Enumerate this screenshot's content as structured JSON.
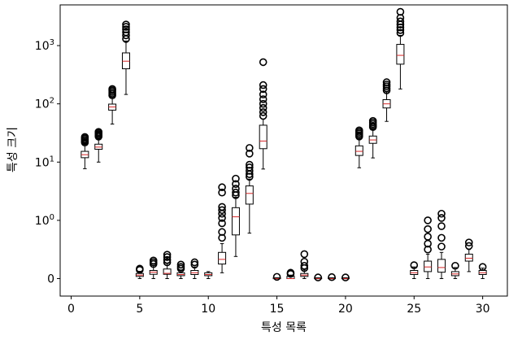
{
  "chart_data": {
    "type": "boxplot",
    "xlabel": "특성 목록",
    "ylabel": "특성 크기",
    "yscale": "symlog",
    "xlim": [
      -0.8,
      31.8
    ],
    "ylim": [
      -0.3,
      5000
    ],
    "xticks": [
      0,
      5,
      10,
      15,
      20,
      25,
      30
    ],
    "xtick_labels": [
      "0",
      "5",
      "10",
      "15",
      "20",
      "25",
      "30"
    ],
    "yticks": [
      0,
      1,
      10,
      100,
      1000
    ],
    "ytick_labels": [
      "0",
      "10^0",
      "10^1",
      "10^2",
      "10^3"
    ],
    "grid": false,
    "boxes": [
      {
        "x": 1,
        "whislo": 7.7,
        "q1": 11.9,
        "med": 13.4,
        "q3": 15.3,
        "whishi": 20.6,
        "fliers": [
          21.7,
          22.9,
          24.2,
          25.6,
          27.0
        ]
      },
      {
        "x": 2,
        "whislo": 10.0,
        "q1": 16.6,
        "med": 18.1,
        "q3": 20.3,
        "whishi": 26.4,
        "fliers": [
          27.4,
          28.6,
          30.0,
          31.5,
          33.0
        ]
      },
      {
        "x": 3,
        "whislo": 45.0,
        "q1": 78.0,
        "med": 88.5,
        "q3": 99.0,
        "whishi": 130.0,
        "fliers": [
          140,
          150,
          160,
          170,
          180
        ]
      },
      {
        "x": 4,
        "whislo": 145.0,
        "q1": 400.0,
        "med": 540.0,
        "q3": 750.0,
        "whishi": 1200.0,
        "fliers": [
          1300,
          1500,
          1700,
          1900,
          2100,
          2300
        ]
      },
      {
        "x": 5,
        "whislo": 0.0,
        "q1": 0.037,
        "med": 0.06,
        "q3": 0.088,
        "whishi": 0.125,
        "fliers": [
          0.15,
          0.17
        ]
      },
      {
        "x": 6,
        "whislo": 0.0,
        "q1": 0.074,
        "med": 0.11,
        "q3": 0.14,
        "whishi": 0.23,
        "fliers": [
          0.25,
          0.28,
          0.31
        ]
      },
      {
        "x": 7,
        "whislo": 0.0,
        "q1": 0.074,
        "med": 0.09,
        "q3": 0.165,
        "whishi": 0.26,
        "fliers": [
          0.28,
          0.32,
          0.37,
          0.41
        ]
      },
      {
        "x": 8,
        "whislo": 0.0,
        "q1": 0.05,
        "med": 0.07,
        "q3": 0.1,
        "whishi": 0.14,
        "fliers": [
          0.17,
          0.2,
          0.24
        ]
      },
      {
        "x": 9,
        "whislo": 0.0,
        "q1": 0.07,
        "med": 0.1,
        "q3": 0.14,
        "whishi": 0.2,
        "fliers": [
          0.24,
          0.28
        ]
      },
      {
        "x": 10,
        "whislo": 0.0,
        "q1": 0.05,
        "med": 0.07,
        "q3": 0.1,
        "whishi": 0.12,
        "fliers": []
      },
      {
        "x": 11,
        "whislo": 0.1,
        "q1": 0.25,
        "med": 0.33,
        "q3": 0.45,
        "whishi": 0.6,
        "fliers": [
          0.7,
          0.8,
          0.95,
          1.1,
          1.3,
          1.5,
          1.7,
          3.0,
          3.7
        ]
      },
      {
        "x": 12,
        "whislo": 0.38,
        "q1": 0.75,
        "med": 1.15,
        "q3": 1.65,
        "whishi": 2.5,
        "fliers": [
          2.7,
          3.0,
          3.5,
          4.2,
          5.2
        ]
      },
      {
        "x": 13,
        "whislo": 0.78,
        "q1": 1.9,
        "med": 2.9,
        "q3": 3.9,
        "whishi": 5.1,
        "fliers": [
          5.6,
          6.2,
          7.1,
          8.1,
          9.0,
          14.0,
          17.5
        ]
      },
      {
        "x": 14,
        "whislo": 7.6,
        "q1": 17.0,
        "med": 23.0,
        "q3": 43.0,
        "whishi": 55.0,
        "fliers": [
          62,
          72,
          85,
          100,
          120,
          145,
          180,
          210,
          520
        ]
      },
      {
        "x": 15,
        "whislo": 0.0,
        "q1": 0.0,
        "med": 0.0,
        "q3": 0.012,
        "whishi": 0.012,
        "fliers": [
          0.03
        ]
      },
      {
        "x": 16,
        "whislo": 0.0,
        "q1": 0.0,
        "med": 0.0,
        "q3": 0.04,
        "whishi": 0.06,
        "fliers": [
          0.08,
          0.1
        ]
      },
      {
        "x": 17,
        "whislo": 0.0,
        "q1": 0.037,
        "med": 0.06,
        "q3": 0.088,
        "whishi": 0.15,
        "fliers": [
          0.18,
          0.22,
          0.29,
          0.42
        ]
      },
      {
        "x": 18,
        "whislo": 0.0,
        "q1": 0.0,
        "med": 0.0,
        "q3": 0.012,
        "whishi": 0.012,
        "fliers": [
          0.02
        ]
      },
      {
        "x": 19,
        "whislo": 0.0,
        "q1": 0.0,
        "med": 0.0,
        "q3": 0.012,
        "whishi": 0.012,
        "fliers": [
          0.025
        ]
      },
      {
        "x": 20,
        "whislo": 0.0,
        "q1": 0.0,
        "med": 0.0,
        "q3": 0.012,
        "whishi": 0.012,
        "fliers": [
          0.02
        ]
      },
      {
        "x": 21,
        "whislo": 8.0,
        "q1": 13.0,
        "med": 15.3,
        "q3": 19.0,
        "whishi": 26.0,
        "fliers": [
          27.5,
          29.0,
          31.0,
          33.0,
          35.0
        ]
      },
      {
        "x": 22,
        "whislo": 11.8,
        "q1": 21.0,
        "med": 24.0,
        "q3": 28.0,
        "whishi": 38.0,
        "fliers": [
          40,
          42,
          45,
          48,
          51
        ]
      },
      {
        "x": 23,
        "whislo": 50.0,
        "q1": 85.0,
        "med": 100.0,
        "q3": 118.0,
        "whishi": 160.0,
        "fliers": [
          170,
          185,
          200,
          215,
          235
        ]
      },
      {
        "x": 24,
        "whislo": 180.0,
        "q1": 480.0,
        "med": 680.0,
        "q3": 1050.0,
        "whishi": 1500.0,
        "fliers": [
          1650,
          1850,
          2050,
          2300,
          2600,
          3000,
          3800
        ]
      },
      {
        "x": 25,
        "whislo": 0.0,
        "q1": 0.07,
        "med": 0.1,
        "q3": 0.14,
        "whishi": 0.2,
        "fliers": [
          0.23
        ]
      },
      {
        "x": 26,
        "whislo": 0.0,
        "q1": 0.12,
        "med": 0.2,
        "q3": 0.3,
        "whishi": 0.42,
        "fliers": [
          0.5,
          0.6,
          0.72,
          0.85,
          1.0
        ]
      },
      {
        "x": 27,
        "whislo": 0.0,
        "q1": 0.11,
        "med": 0.19,
        "q3": 0.33,
        "whishi": 0.45,
        "fliers": [
          0.55,
          0.7,
          0.9,
          1.1,
          1.3
        ]
      },
      {
        "x": 28,
        "whislo": 0.0,
        "q1": 0.05,
        "med": 0.08,
        "q3": 0.12,
        "whishi": 0.19,
        "fliers": [
          0.22
        ]
      },
      {
        "x": 29,
        "whislo": 0.12,
        "q1": 0.3,
        "med": 0.35,
        "q3": 0.42,
        "whishi": 0.5,
        "fliers": [
          0.56,
          0.62
        ]
      },
      {
        "x": 30,
        "whislo": 0.0,
        "q1": 0.07,
        "med": 0.1,
        "q3": 0.14,
        "whishi": 0.18,
        "fliers": [
          0.2
        ]
      }
    ],
    "colors": {
      "box": "#000000",
      "median": "#d62728",
      "flier": "#000000"
    }
  }
}
